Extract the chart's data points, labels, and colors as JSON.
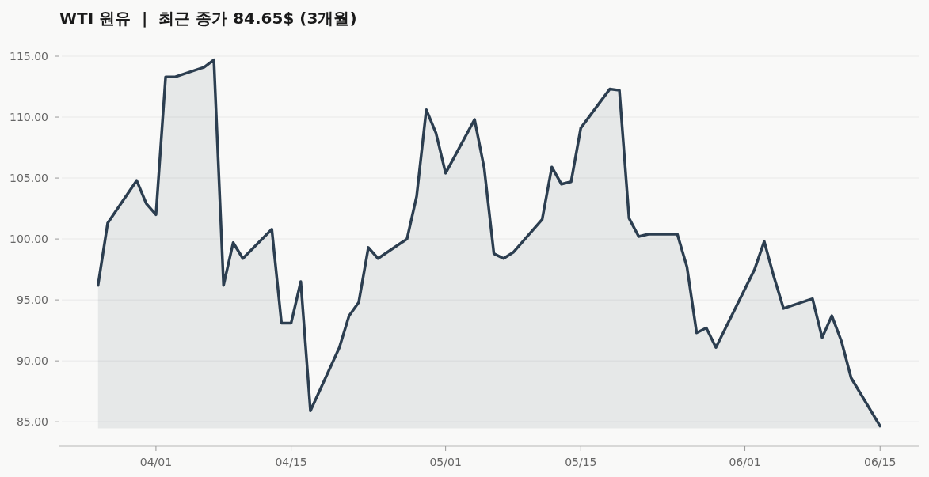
{
  "chart_data": {
    "type": "area",
    "title": "WTI 원유  |  최근 종가 84.65$ (3개월)",
    "x": [
      "--03-26",
      "--03-27",
      "--03-30",
      "--03-31",
      "--04-01",
      "--04-02",
      "--04-03",
      "--04-06",
      "--04-07",
      "--04-08",
      "--04-09",
      "--04-10",
      "--04-13",
      "--04-14",
      "--04-15",
      "--04-16",
      "--04-17",
      "--04-20",
      "--04-21",
      "--04-22",
      "--04-23",
      "--04-24",
      "--04-27",
      "--04-28",
      "--04-29",
      "--04-30",
      "--05-01",
      "--05-04",
      "--05-05",
      "--05-06",
      "--05-07",
      "--05-08",
      "--05-11",
      "--05-12",
      "--05-13",
      "--05-14",
      "--05-15",
      "--05-18",
      "--05-19",
      "--05-20",
      "--05-21",
      "--05-22",
      "--05-25",
      "--05-26",
      "--05-27",
      "--05-28",
      "--05-29",
      "--06-02",
      "--06-03",
      "--06-04",
      "--06-05",
      "--06-08",
      "--06-09",
      "--06-10",
      "--06-11",
      "--06-12",
      "--06-15"
    ],
    "values": [
      96.2,
      101.3,
      104.8,
      102.9,
      102.0,
      113.3,
      113.3,
      114.1,
      114.7,
      96.2,
      99.7,
      98.4,
      100.8,
      93.1,
      93.1,
      96.5,
      85.9,
      91.1,
      93.7,
      94.8,
      99.3,
      98.4,
      100.0,
      103.5,
      110.6,
      108.7,
      105.4,
      109.8,
      105.8,
      98.8,
      98.4,
      98.9,
      101.6,
      105.9,
      104.5,
      104.7,
      109.1,
      112.3,
      112.2,
      101.7,
      100.2,
      100.4,
      100.4,
      97.7,
      92.3,
      92.7,
      91.1,
      97.5,
      99.8,
      96.9,
      94.3,
      95.1,
      91.9,
      93.7,
      91.6,
      88.6,
      84.65
    ],
    "color": "#2c3e50",
    "xlim": [
      "--03-22",
      "--06-19"
    ],
    "xticks": [
      {
        "value": "--04-01",
        "label": "04/01"
      },
      {
        "value": "--04-15",
        "label": "04/15"
      },
      {
        "value": "--05-01",
        "label": "05/01"
      },
      {
        "value": "--05-15",
        "label": "05/15"
      },
      {
        "value": "--06-01",
        "label": "06/01"
      },
      {
        "value": "--06-15",
        "label": "06/15"
      }
    ],
    "ylim": [
      83,
      115
    ],
    "yticks": [
      {
        "value": 85,
        "label": "85.00"
      },
      {
        "value": 90,
        "label": "90.00"
      },
      {
        "value": 95,
        "label": "95.00"
      },
      {
        "value": 100,
        "label": "100.00"
      },
      {
        "value": 105,
        "label": "105.00"
      },
      {
        "value": 110,
        "label": "110.00"
      },
      {
        "value": 115,
        "label": "115.00"
      }
    ],
    "grid": "y"
  }
}
